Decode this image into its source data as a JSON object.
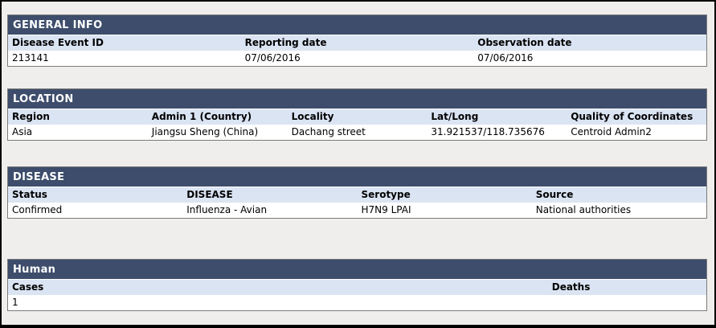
{
  "colors": {
    "outer_border": "#000000",
    "page_bg": "#efeeec",
    "panel_border": "#7b7b7b",
    "section_header_bg": "#3d4d6b",
    "section_header_fg": "#ffffff",
    "column_header_bg": "#dbe4f3"
  },
  "sections": {
    "general_info": {
      "title": "GENERAL INFO",
      "columns": [
        "Disease Event ID",
        "Reporting date",
        "Observation date"
      ],
      "values": [
        "213141",
        "07/06/2016",
        "07/06/2016"
      ]
    },
    "location": {
      "title": "LOCATION",
      "columns": [
        "Region",
        "Admin 1 (Country)",
        "Locality",
        "Lat/Long",
        "Quality of Coordinates"
      ],
      "values": [
        "Asia",
        "Jiangsu Sheng (China)",
        "Dachang street",
        "31.921537/118.735676",
        "Centroid Admin2"
      ]
    },
    "disease": {
      "title": "DISEASE",
      "columns": [
        "Status",
        "DISEASE",
        "Serotype",
        "Source"
      ],
      "values": [
        "Confirmed",
        "Influenza - Avian",
        "H7N9 LPAI",
        "National authorities"
      ]
    },
    "human": {
      "title": "Human",
      "columns": [
        "Cases",
        "Deaths"
      ],
      "values": [
        "1",
        ""
      ]
    }
  }
}
